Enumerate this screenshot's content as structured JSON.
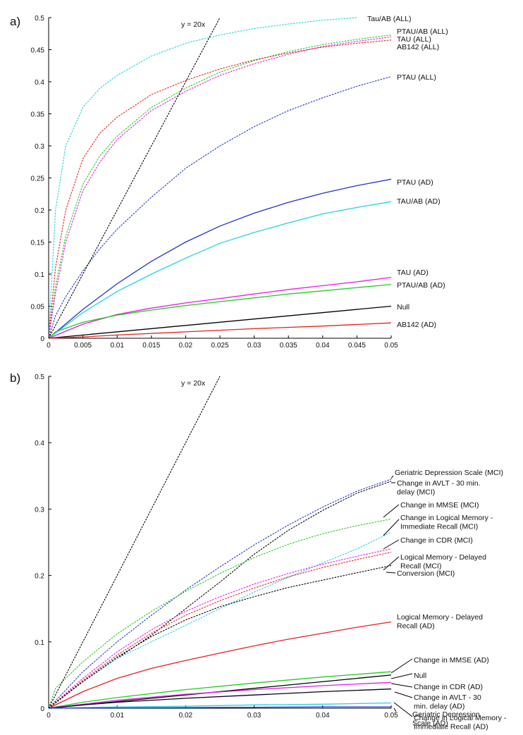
{
  "chart_data": [
    {
      "panel_label": "a)",
      "type": "line",
      "xlim": [
        0,
        0.05
      ],
      "ylim": [
        0,
        0.5
      ],
      "x_ticks": [
        "0",
        "0.005",
        "0.01",
        "0.015",
        "0.02",
        "0.025",
        "0.03",
        "0.035",
        "0.04",
        "0.045",
        "0.05"
      ],
      "y_ticks": [
        "0",
        "0.05",
        "0.1",
        "0.15",
        "0.2",
        "0.25",
        "0.3",
        "0.35",
        "0.4",
        "0.45",
        "0.5"
      ],
      "annotation": "y = 20x",
      "series": [
        {
          "name": "Tau/AB (ALL)",
          "color": "#22d3e0",
          "dashed": true,
          "x": [
            0,
            0.001,
            0.0025,
            0.005,
            0.0075,
            0.01,
            0.015,
            0.02,
            0.025,
            0.03,
            0.035,
            0.04,
            0.045
          ],
          "y": [
            0,
            0.2,
            0.3,
            0.36,
            0.39,
            0.41,
            0.44,
            0.46,
            0.473,
            0.483,
            0.49,
            0.496,
            0.5
          ]
        },
        {
          "name": "PTAU/AB (ALL)",
          "color": "#22cc22",
          "dashed": true,
          "x": [
            0,
            0.001,
            0.0025,
            0.005,
            0.0075,
            0.01,
            0.015,
            0.02,
            0.025,
            0.03,
            0.035,
            0.04,
            0.045,
            0.05
          ],
          "y": [
            0,
            0.08,
            0.16,
            0.24,
            0.285,
            0.315,
            0.36,
            0.39,
            0.415,
            0.433,
            0.447,
            0.458,
            0.466,
            0.473
          ]
        },
        {
          "name": "TAU (ALL)",
          "color": "#e81ae8",
          "dashed": true,
          "x": [
            0,
            0.001,
            0.0025,
            0.005,
            0.0075,
            0.01,
            0.015,
            0.02,
            0.025,
            0.03,
            0.035,
            0.04,
            0.045,
            0.05
          ],
          "y": [
            0,
            0.07,
            0.15,
            0.23,
            0.275,
            0.31,
            0.355,
            0.385,
            0.41,
            0.428,
            0.443,
            0.455,
            0.463,
            0.47
          ]
        },
        {
          "name": "AB142 (ALL)",
          "color": "#e82020",
          "dashed": true,
          "x": [
            0,
            0.001,
            0.0025,
            0.005,
            0.0075,
            0.01,
            0.015,
            0.02,
            0.025,
            0.03,
            0.035,
            0.04,
            0.045,
            0.05
          ],
          "y": [
            0,
            0.11,
            0.2,
            0.28,
            0.32,
            0.345,
            0.38,
            0.402,
            0.42,
            0.434,
            0.445,
            0.454,
            0.46,
            0.465
          ]
        },
        {
          "name": "PTAU (ALL)",
          "color": "#2233cc",
          "dashed": true,
          "x": [
            0,
            0.001,
            0.0025,
            0.005,
            0.0075,
            0.01,
            0.015,
            0.02,
            0.025,
            0.03,
            0.035,
            0.04,
            0.045,
            0.05
          ],
          "y": [
            0,
            0.035,
            0.065,
            0.105,
            0.14,
            0.17,
            0.22,
            0.265,
            0.3,
            0.33,
            0.355,
            0.375,
            0.393,
            0.408
          ]
        },
        {
          "name": "PTAU (AD)",
          "color": "#2233cc",
          "dashed": false,
          "x": [
            0,
            0.005,
            0.01,
            0.015,
            0.02,
            0.025,
            0.03,
            0.035,
            0.04,
            0.045,
            0.05
          ],
          "y": [
            0,
            0.045,
            0.085,
            0.12,
            0.15,
            0.175,
            0.195,
            0.212,
            0.226,
            0.238,
            0.248
          ]
        },
        {
          "name": "TAU/AB (AD)",
          "color": "#22d3e0",
          "dashed": false,
          "x": [
            0,
            0.005,
            0.01,
            0.015,
            0.02,
            0.025,
            0.03,
            0.035,
            0.04,
            0.045,
            0.05
          ],
          "y": [
            0,
            0.04,
            0.073,
            0.1,
            0.125,
            0.148,
            0.165,
            0.18,
            0.194,
            0.204,
            0.213
          ]
        },
        {
          "name": "TAU (AD)",
          "color": "#e81ae8",
          "dashed": false,
          "x": [
            0,
            0.005,
            0.01,
            0.015,
            0.02,
            0.025,
            0.03,
            0.035,
            0.04,
            0.045,
            0.05
          ],
          "y": [
            0,
            0.022,
            0.037,
            0.047,
            0.055,
            0.062,
            0.069,
            0.076,
            0.082,
            0.088,
            0.095
          ]
        },
        {
          "name": "PTAU/AB (AD)",
          "color": "#22cc22",
          "dashed": false,
          "x": [
            0,
            0.001,
            0.005,
            0.01,
            0.015,
            0.02,
            0.025,
            0.03,
            0.035,
            0.04,
            0.045,
            0.05
          ],
          "y": [
            0,
            0.01,
            0.025,
            0.036,
            0.044,
            0.051,
            0.057,
            0.063,
            0.069,
            0.074,
            0.079,
            0.084
          ]
        },
        {
          "name": "Null",
          "color": "#000000",
          "dashed": false,
          "x": [
            0,
            0.05
          ],
          "y": [
            0,
            0.05
          ]
        },
        {
          "name": "AB142 (AD)",
          "color": "#e82020",
          "dashed": false,
          "x": [
            0,
            0.005,
            0.01,
            0.02,
            0.03,
            0.04,
            0.05
          ],
          "y": [
            0,
            0.002,
            0.005,
            0.01,
            0.015,
            0.019,
            0.024
          ]
        },
        {
          "name": "y = 20x",
          "color": "#000000",
          "dashed": true,
          "x": [
            0,
            0.025
          ],
          "y": [
            0,
            0.5
          ]
        }
      ]
    },
    {
      "panel_label": "b)",
      "type": "line",
      "xlim": [
        0,
        0.05
      ],
      "ylim": [
        0,
        0.5
      ],
      "x_ticks": [
        "0",
        "0.01",
        "0.02",
        "0.03",
        "0.04",
        "0.05"
      ],
      "y_ticks": [
        "0",
        "0.1",
        "0.2",
        "0.3",
        "0.4",
        "0.5"
      ],
      "annotation": "y = 20x",
      "series": [
        {
          "name": "Geriatric Depression Scale (MCI)",
          "color": "#2233cc",
          "dashed": true,
          "x": [
            0,
            0.005,
            0.01,
            0.015,
            0.02,
            0.025,
            0.03,
            0.035,
            0.04,
            0.045,
            0.05
          ],
          "y": [
            0,
            0.055,
            0.1,
            0.14,
            0.178,
            0.213,
            0.246,
            0.276,
            0.303,
            0.327,
            0.345
          ]
        },
        {
          "name": "Change in AVLT - 30 min. delay (MCI)",
          "color": "#000000",
          "dashed": true,
          "x": [
            0,
            0.005,
            0.01,
            0.015,
            0.02,
            0.025,
            0.03,
            0.035,
            0.04,
            0.045,
            0.05
          ],
          "y": [
            0,
            0.04,
            0.075,
            0.11,
            0.15,
            0.19,
            0.232,
            0.268,
            0.298,
            0.324,
            0.342
          ]
        },
        {
          "name": "Change in MMSE (MCI)",
          "color": "#22cc22",
          "dashed": true,
          "x": [
            0,
            0.001,
            0.005,
            0.01,
            0.015,
            0.02,
            0.025,
            0.03,
            0.035,
            0.04,
            0.045,
            0.05
          ],
          "y": [
            0,
            0.03,
            0.07,
            0.112,
            0.146,
            0.176,
            0.203,
            0.227,
            0.247,
            0.263,
            0.275,
            0.285
          ]
        },
        {
          "name": "Change in Logical Memory - Immediate Recall (MCI)",
          "color": "#22d3e0",
          "dashed": true,
          "x": [
            0,
            0.005,
            0.01,
            0.015,
            0.02,
            0.025,
            0.03,
            0.035,
            0.04,
            0.045,
            0.05
          ],
          "y": [
            0,
            0.04,
            0.075,
            0.1,
            0.125,
            0.15,
            0.175,
            0.197,
            0.219,
            0.24,
            0.265
          ]
        },
        {
          "name": "Change in CDR (MCI)",
          "color": "#e81ae8",
          "dashed": true,
          "x": [
            0,
            0.005,
            0.01,
            0.015,
            0.02,
            0.025,
            0.03,
            0.035,
            0.04,
            0.045,
            0.05
          ],
          "y": [
            0,
            0.045,
            0.085,
            0.118,
            0.146,
            0.168,
            0.187,
            0.203,
            0.217,
            0.229,
            0.24
          ]
        },
        {
          "name": "Logical Memory - Delayed Recall (MCI)",
          "color": "#e82020",
          "dashed": true,
          "x": [
            0,
            0.005,
            0.01,
            0.015,
            0.02,
            0.025,
            0.03,
            0.035,
            0.04,
            0.045,
            0.05
          ],
          "y": [
            0,
            0.042,
            0.08,
            0.113,
            0.14,
            0.162,
            0.181,
            0.198,
            0.212,
            0.224,
            0.235
          ]
        },
        {
          "name": "Conversion (MCI)",
          "color": "#000000",
          "dashed": true,
          "x": [
            0,
            0.005,
            0.01,
            0.015,
            0.02,
            0.025,
            0.03,
            0.035,
            0.04,
            0.045,
            0.05
          ],
          "y": [
            0,
            0.04,
            0.077,
            0.108,
            0.133,
            0.153,
            0.168,
            0.182,
            0.193,
            0.204,
            0.215
          ]
        },
        {
          "name": "Logical Memory - Delayed Recall (AD)",
          "color": "#e82020",
          "dashed": false,
          "x": [
            0,
            0.005,
            0.01,
            0.015,
            0.02,
            0.025,
            0.03,
            0.035,
            0.04,
            0.045,
            0.05
          ],
          "y": [
            0,
            0.025,
            0.045,
            0.06,
            0.072,
            0.083,
            0.094,
            0.104,
            0.113,
            0.122,
            0.13
          ]
        },
        {
          "name": "Change in MMSE (AD)",
          "color": "#22cc22",
          "dashed": false,
          "x": [
            0,
            0.005,
            0.01,
            0.02,
            0.03,
            0.04,
            0.05
          ],
          "y": [
            0,
            0.009,
            0.016,
            0.028,
            0.038,
            0.047,
            0.055
          ]
        },
        {
          "name": "Null",
          "color": "#000000",
          "dashed": false,
          "x": [
            0,
            0.05
          ],
          "y": [
            0,
            0.05
          ]
        },
        {
          "name": "Change in CDR (AD)",
          "color": "#e81ae8",
          "dashed": false,
          "x": [
            0,
            0.005,
            0.01,
            0.02,
            0.03,
            0.04,
            0.05
          ],
          "y": [
            0,
            0.006,
            0.012,
            0.021,
            0.028,
            0.034,
            0.039
          ]
        },
        {
          "name": "Change in AVLT - 30 min. delay (AD)",
          "color": "#000022",
          "dashed": false,
          "x": [
            0,
            0.005,
            0.01,
            0.02,
            0.03,
            0.04,
            0.05
          ],
          "y": [
            0,
            0.005,
            0.009,
            0.015,
            0.02,
            0.025,
            0.029
          ]
        },
        {
          "name": "Change in Logical Memory - Immediate Recall (AD)",
          "color": "#22d3e0",
          "dashed": false,
          "x": [
            0,
            0.01,
            0.02,
            0.03,
            0.04,
            0.05
          ],
          "y": [
            0,
            0.002,
            0.003,
            0.005,
            0.006,
            0.008
          ]
        },
        {
          "name": "Geriatric Depression Scale (AD)",
          "color": "#2233cc",
          "dashed": false,
          "x": [
            0,
            0.01,
            0.02,
            0.03,
            0.04,
            0.05
          ],
          "y": [
            0,
            0.0005,
            0.001,
            0.0015,
            0.002,
            0.002
          ]
        },
        {
          "name": "y = 20x",
          "color": "#000000",
          "dashed": true,
          "x": [
            0,
            0.025
          ],
          "y": [
            0,
            0.5
          ]
        }
      ]
    }
  ],
  "labels": {
    "a": [
      {
        "text": "Tau/AB (ALL)",
        "series": 0
      },
      {
        "text": "PTAU/AB (ALL)",
        "series": 1
      },
      {
        "text": "TAU (ALL)",
        "series": 2
      },
      {
        "text": "AB142 (ALL)",
        "series": 3
      },
      {
        "text": "PTAU (ALL)",
        "series": 4
      },
      {
        "text": "PTAU (AD)",
        "series": 5
      },
      {
        "text": "TAU/AB (AD)",
        "series": 6
      },
      {
        "text": "TAU (AD)",
        "series": 7
      },
      {
        "text": "PTAU/AB (AD)",
        "series": 8
      },
      {
        "text": "Null",
        "series": 9
      },
      {
        "text": "AB142 (AD)",
        "series": 10
      }
    ],
    "b": [
      {
        "lines": [
          "Geriatric Depression Scale (MCI)"
        ]
      },
      {
        "lines": [
          "Change in AVLT - 30 min.",
          "delay (MCI)"
        ]
      },
      {
        "lines": [
          "Change in MMSE (MCI)"
        ]
      },
      {
        "lines": [
          "Change in Logical Memory -",
          "Immediate Recall  (MCI)"
        ]
      },
      {
        "lines": [
          "Change in CDR (MCI)"
        ]
      },
      {
        "lines": [
          "Logical Memory - Delayed",
          "Recall (MCI)"
        ]
      },
      {
        "lines": [
          "Conversion (MCI)"
        ]
      },
      {
        "lines": [
          "Logical Memory - Delayed",
          "Recall (AD)"
        ]
      },
      {
        "lines": [
          "Change in MMSE (AD)"
        ]
      },
      {
        "lines": [
          "Null"
        ]
      },
      {
        "lines": [
          "Change in CDR (AD)"
        ]
      },
      {
        "lines": [
          "Change in AVLT - 30",
          "min. delay (AD)"
        ]
      },
      {
        "lines": [
          "Change in Logical Memory -",
          "Immediate Recall  (AD)"
        ]
      },
      {
        "lines": [
          "Geriatric Depression",
          "Scale (AD)"
        ]
      }
    ]
  }
}
